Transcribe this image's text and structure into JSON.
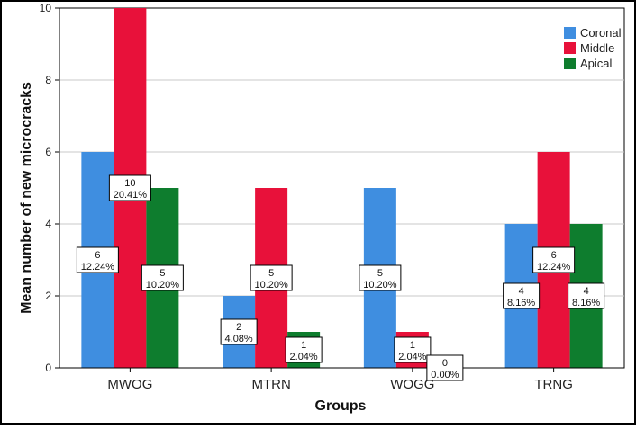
{
  "chart_data": {
    "type": "bar",
    "title": "",
    "xlabel": "Groups",
    "ylabel": "Mean number of new microcracks",
    "categories": [
      "MWOG",
      "MTRN",
      "WOGG",
      "TRNG"
    ],
    "ylim": [
      0,
      10
    ],
    "yticks": [
      0,
      2,
      4,
      6,
      8,
      10
    ],
    "grid": true,
    "legend_position": "top-right",
    "series": [
      {
        "name": "Coronal",
        "color": "#3f8ee0",
        "values": [
          6,
          2,
          5,
          4
        ],
        "labels": [
          "6\n12.24%",
          "2\n4.08%",
          "5\n10.20%",
          "4\n8.16%"
        ]
      },
      {
        "name": "Middle",
        "color": "#e8113a",
        "values": [
          10,
          5,
          1,
          6
        ],
        "labels": [
          "10\n20.41%",
          "5\n10.20%",
          "1\n2.04%",
          "6\n12.24%"
        ]
      },
      {
        "name": "Apical",
        "color": "#0e7d2e",
        "values": [
          5,
          1,
          0,
          4
        ],
        "labels": [
          "5\n10.20%",
          "1\n2.04%",
          "0\n0.00%",
          "4\n8.16%"
        ]
      }
    ]
  }
}
